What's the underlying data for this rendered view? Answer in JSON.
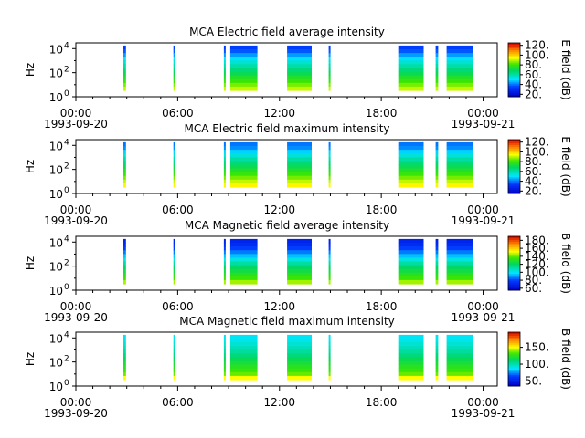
{
  "chart_data": [
    {
      "type": "heatmap",
      "title": "MCA  Electric field average intensity",
      "ylabel": "Hz",
      "yscale": "log",
      "ylim": [
        1,
        30000
      ],
      "yticks": [
        {
          "value": 1,
          "label": "10",
          "exp": "0"
        },
        {
          "value": 100,
          "label": "10",
          "exp": "2"
        },
        {
          "value": 10000,
          "label": "10",
          "exp": "4"
        }
      ],
      "xlim": [
        "1993-09-20T00:00",
        "1993-09-21T00:50"
      ],
      "xticks": [
        {
          "time": "00:00",
          "date": "1993-09-20"
        },
        {
          "time": "06:00",
          "date": ""
        },
        {
          "time": "12:00",
          "date": ""
        },
        {
          "time": "18:00",
          "date": ""
        },
        {
          "time": "00:00",
          "date": "1993-09-21"
        }
      ],
      "colorbar": {
        "label": "E field (dB)",
        "min": 15,
        "max": 125,
        "ticks": [
          20,
          40,
          60,
          80,
          100,
          120
        ],
        "tick_labels": [
          "20.",
          "40.",
          "60.",
          "80.",
          "100.",
          "120."
        ]
      },
      "data_intervals_hours": [
        [
          2.8,
          2.95
        ],
        [
          5.75,
          5.85
        ],
        [
          8.72,
          8.8
        ],
        [
          9.1,
          10.7
        ],
        [
          12.45,
          13.9
        ],
        [
          14.9,
          14.97
        ],
        [
          19.0,
          20.5
        ],
        [
          21.2,
          21.35
        ],
        [
          21.85,
          23.4
        ]
      ],
      "level_profile_db": [
        {
          "hz": 8000,
          "db": 35
        },
        {
          "hz": 800,
          "db": 55
        },
        {
          "hz": 40,
          "db": 75
        },
        {
          "hz": 5,
          "db": 90
        },
        {
          "hz": 1.5,
          "db": 105
        }
      ]
    },
    {
      "type": "heatmap",
      "title": "MCA  Electric field maximum intensity",
      "ylabel": "Hz",
      "yscale": "log",
      "ylim": [
        1,
        30000
      ],
      "yticks": [
        {
          "value": 1,
          "label": "10",
          "exp": "0"
        },
        {
          "value": 100,
          "label": "10",
          "exp": "2"
        },
        {
          "value": 10000,
          "label": "10",
          "exp": "4"
        }
      ],
      "xlim": [
        "1993-09-20T00:00",
        "1993-09-21T00:50"
      ],
      "xticks": [
        {
          "time": "00:00",
          "date": "1993-09-20"
        },
        {
          "time": "06:00",
          "date": ""
        },
        {
          "time": "12:00",
          "date": ""
        },
        {
          "time": "18:00",
          "date": ""
        },
        {
          "time": "00:00",
          "date": "1993-09-21"
        }
      ],
      "colorbar": {
        "label": "E field (dB)",
        "min": 15,
        "max": 125,
        "ticks": [
          20,
          40,
          60,
          80,
          100,
          120
        ],
        "tick_labels": [
          "20.",
          "40.",
          "60.",
          "80.",
          "100.",
          "120."
        ]
      },
      "data_intervals_hours": [
        [
          2.8,
          2.95
        ],
        [
          5.75,
          5.85
        ],
        [
          8.72,
          8.8
        ],
        [
          9.1,
          10.7
        ],
        [
          12.45,
          13.9
        ],
        [
          14.9,
          14.97
        ],
        [
          19.0,
          20.5
        ],
        [
          21.2,
          21.35
        ],
        [
          21.85,
          23.4
        ]
      ],
      "level_profile_db": [
        {
          "hz": 8000,
          "db": 40
        },
        {
          "hz": 800,
          "db": 60
        },
        {
          "hz": 40,
          "db": 80
        },
        {
          "hz": 5,
          "db": 95
        },
        {
          "hz": 1.5,
          "db": 110
        }
      ]
    },
    {
      "type": "heatmap",
      "title": "MCA  Magnetic field average intensity",
      "ylabel": "Hz",
      "yscale": "log",
      "ylim": [
        1,
        30000
      ],
      "yticks": [
        {
          "value": 1,
          "label": "10",
          "exp": "0"
        },
        {
          "value": 100,
          "label": "10",
          "exp": "2"
        },
        {
          "value": 10000,
          "label": "10",
          "exp": "4"
        }
      ],
      "xlim": [
        "1993-09-20T00:00",
        "1993-09-21T00:50"
      ],
      "xticks": [
        {
          "time": "00:00",
          "date": "1993-09-20"
        },
        {
          "time": "06:00",
          "date": ""
        },
        {
          "time": "12:00",
          "date": ""
        },
        {
          "time": "18:00",
          "date": ""
        },
        {
          "time": "00:00",
          "date": "1993-09-21"
        }
      ],
      "colorbar": {
        "label": "B field (dB)",
        "min": 55,
        "max": 190,
        "ticks": [
          60,
          80,
          100,
          120,
          140,
          160,
          180
        ],
        "tick_labels": [
          "60.",
          "80.",
          "100.",
          "120.",
          "140.",
          "160.",
          "180."
        ]
      },
      "data_intervals_hours": [
        [
          2.8,
          2.95
        ],
        [
          5.75,
          5.85
        ],
        [
          8.72,
          8.8
        ],
        [
          9.1,
          10.7
        ],
        [
          12.45,
          13.9
        ],
        [
          14.9,
          14.97
        ],
        [
          19.0,
          20.5
        ],
        [
          21.2,
          21.35
        ],
        [
          21.85,
          23.4
        ]
      ],
      "level_profile_db": [
        {
          "hz": 8000,
          "db": 70
        },
        {
          "hz": 1000,
          "db": 90
        },
        {
          "hz": 100,
          "db": 118
        },
        {
          "hz": 10,
          "db": 135
        },
        {
          "hz": 1.5,
          "db": 160
        }
      ]
    },
    {
      "type": "heatmap",
      "title": "MCA  Magnetic field maximum intensity",
      "ylabel": "Hz",
      "yscale": "log",
      "ylim": [
        1,
        30000
      ],
      "yticks": [
        {
          "value": 1,
          "label": "10",
          "exp": "0"
        },
        {
          "value": 100,
          "label": "10",
          "exp": "2"
        },
        {
          "value": 10000,
          "label": "10",
          "exp": "4"
        }
      ],
      "xlim": [
        "1993-09-20T00:00",
        "1993-09-21T00:50"
      ],
      "xticks": [
        {
          "time": "00:00",
          "date": "1993-09-20"
        },
        {
          "time": "06:00",
          "date": ""
        },
        {
          "time": "12:00",
          "date": ""
        },
        {
          "time": "18:00",
          "date": ""
        },
        {
          "time": "00:00",
          "date": "1993-09-21"
        }
      ],
      "colorbar": {
        "label": "B field (dB)",
        "min": 35,
        "max": 195,
        "ticks": [
          50,
          100,
          150
        ],
        "tick_labels": [
          "50.",
          "100.",
          "150."
        ]
      },
      "data_intervals_hours": [
        [
          2.8,
          2.95
        ],
        [
          5.75,
          5.85
        ],
        [
          8.72,
          8.8
        ],
        [
          9.1,
          10.7
        ],
        [
          12.45,
          13.9
        ],
        [
          14.9,
          14.97
        ],
        [
          19.0,
          20.5
        ],
        [
          21.2,
          21.35
        ],
        [
          21.85,
          23.4
        ]
      ],
      "level_profile_db": [
        {
          "hz": 8000,
          "db": 88
        },
        {
          "hz": 1000,
          "db": 100
        },
        {
          "hz": 100,
          "db": 118
        },
        {
          "hz": 10,
          "db": 135
        },
        {
          "hz": 1.5,
          "db": 175
        }
      ]
    }
  ]
}
